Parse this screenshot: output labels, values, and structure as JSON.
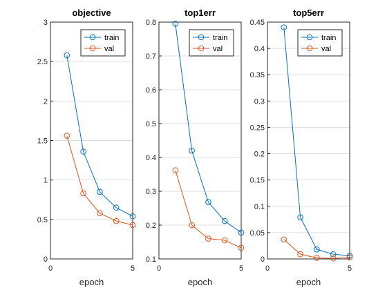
{
  "chart_data": [
    {
      "type": "line",
      "title": "objective",
      "xlabel": "epoch",
      "ylabel": "",
      "xlim": [
        0,
        5
      ],
      "ylim": [
        0,
        3
      ],
      "xticks": [
        "0",
        "5"
      ],
      "yticks": [
        "0",
        "0.5",
        "1",
        "1.5",
        "2",
        "2.5",
        "3"
      ],
      "grid": "horizontal",
      "legend": "top-right",
      "x": [
        1,
        2,
        3,
        4,
        5
      ],
      "series": [
        {
          "name": "train",
          "color": "#0072bd",
          "values": [
            2.58,
            1.36,
            0.85,
            0.65,
            0.54
          ]
        },
        {
          "name": "val",
          "color": "#d95319",
          "values": [
            1.56,
            0.83,
            0.58,
            0.48,
            0.43
          ]
        }
      ]
    },
    {
      "type": "line",
      "title": "top1err",
      "xlabel": "epoch",
      "ylabel": "",
      "xlim": [
        0,
        5
      ],
      "ylim": [
        0.1,
        0.8
      ],
      "xticks": [
        "0",
        "5"
      ],
      "yticks": [
        "0.1",
        "0.2",
        "0.3",
        "0.4",
        "0.5",
        "0.6",
        "0.7",
        "0.8"
      ],
      "grid": "horizontal",
      "legend": "top-right",
      "x": [
        1,
        2,
        3,
        4,
        5
      ],
      "series": [
        {
          "name": "train",
          "color": "#0072bd",
          "values": [
            0.795,
            0.42,
            0.268,
            0.212,
            0.178
          ]
        },
        {
          "name": "val",
          "color": "#d95319",
          "values": [
            0.362,
            0.2,
            0.16,
            0.155,
            0.133
          ]
        }
      ]
    },
    {
      "type": "line",
      "title": "top5err",
      "xlabel": "epoch",
      "ylabel": "",
      "xlim": [
        0,
        5
      ],
      "ylim": [
        0,
        0.45
      ],
      "xticks": [
        "0",
        "5"
      ],
      "yticks": [
        "0",
        "0.05",
        "0.1",
        "0.15",
        "0.2",
        "0.25",
        "0.3",
        "0.35",
        "0.4",
        "0.45"
      ],
      "grid": "horizontal",
      "legend": "top-right",
      "x": [
        1,
        2,
        3,
        4,
        5
      ],
      "series": [
        {
          "name": "train",
          "color": "#0072bd",
          "values": [
            0.44,
            0.079,
            0.018,
            0.009,
            0.006
          ]
        },
        {
          "name": "val",
          "color": "#d95319",
          "values": [
            0.037,
            0.009,
            0.002,
            0.001,
            0.003
          ]
        }
      ]
    }
  ]
}
